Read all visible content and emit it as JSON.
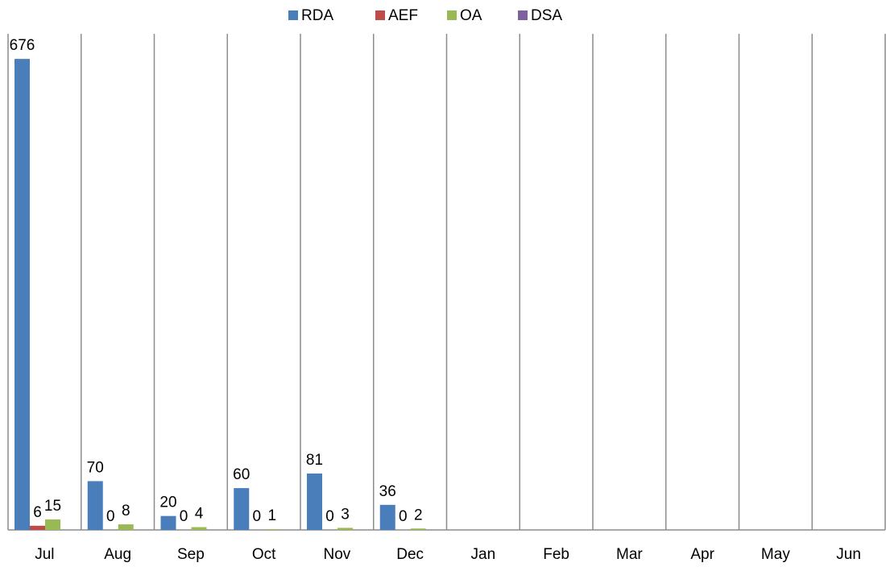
{
  "chart_data": {
    "type": "bar",
    "categories": [
      "Jul",
      "Aug",
      "Sep",
      "Oct",
      "Nov",
      "Dec",
      "Jan",
      "Feb",
      "Mar",
      "Apr",
      "May",
      "Jun"
    ],
    "series": [
      {
        "name": "RDA",
        "color": "#4a7ebb",
        "values": [
          676,
          70,
          20,
          60,
          81,
          36,
          null,
          null,
          null,
          null,
          null,
          null
        ]
      },
      {
        "name": "AEF",
        "color": "#be4b48",
        "values": [
          6,
          0,
          0,
          0,
          0,
          0,
          null,
          null,
          null,
          null,
          null,
          null
        ]
      },
      {
        "name": "OA",
        "color": "#98b954",
        "values": [
          15,
          8,
          4,
          1,
          3,
          2,
          null,
          null,
          null,
          null,
          null,
          null
        ]
      },
      {
        "name": "DSA",
        "color": "#7d60a0",
        "values": [
          null,
          null,
          null,
          null,
          null,
          null,
          null,
          null,
          null,
          null,
          null,
          null
        ]
      }
    ],
    "ylim": [
      0,
      712
    ],
    "legend": "top"
  }
}
